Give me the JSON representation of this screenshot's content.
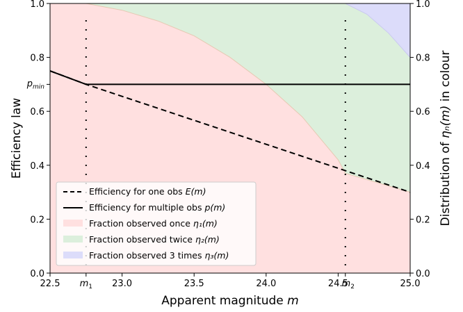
{
  "chart_data": {
    "type": "area",
    "xlabel": "Apparent magnitude m",
    "ylabel": "Efficiency law",
    "ylabel_right": "Distribution of η_n(m) in colour",
    "xlim": [
      22.5,
      25.0
    ],
    "ylim": [
      0.0,
      1.0
    ],
    "ylim_right": [
      0.0,
      1.0
    ],
    "x_ticks": [
      22.5,
      23.0,
      23.5,
      24.0,
      24.5,
      25.0
    ],
    "x_tick_labels": [
      "22.5",
      "23.0",
      "23.5",
      "24.0",
      "24.5",
      "25.0"
    ],
    "y_ticks": [
      0.0,
      0.2,
      0.4,
      0.6,
      0.8,
      1.0
    ],
    "y_tick_labels": [
      "0.0",
      "0.2",
      "0.4",
      "0.6",
      "0.8",
      "1.0"
    ],
    "y_right_ticks": [
      0.0,
      0.2,
      0.4,
      0.6,
      0.8,
      1.0
    ],
    "y_right_tick_labels": [
      "0.0",
      "0.2",
      "0.4",
      "0.6",
      "0.8",
      "1.0"
    ],
    "annotations": {
      "m1": {
        "x": 22.75,
        "label": "m₁"
      },
      "m2": {
        "x": 24.55,
        "label": "m₂"
      },
      "pmin": {
        "y": 0.7,
        "label": "p_min"
      }
    },
    "legend_placement": "lower-left",
    "grid": false,
    "series": [
      {
        "name": "Efficiency for one obs E(m)",
        "kind": "dashed-line",
        "color": "#000000",
        "x": [
          22.5,
          22.75,
          25.0
        ],
        "y": [
          0.75,
          0.7,
          0.3
        ]
      },
      {
        "name": "Efficiency for multiple obs p(m)",
        "kind": "solid-line",
        "color": "#000000",
        "x": [
          22.5,
          22.75,
          23.0,
          23.5,
          24.0,
          24.5,
          25.0
        ],
        "y": [
          0.75,
          0.7,
          0.7,
          0.7,
          0.7,
          0.7,
          0.7
        ]
      },
      {
        "name": "Fraction observed once η₁(m)",
        "kind": "fill",
        "color": "#ffe0e0",
        "x": [
          22.5,
          25.0
        ],
        "y_lower": [
          0.0,
          0.0
        ],
        "y_upper": [
          1.0,
          1.0
        ]
      },
      {
        "name": "Fraction observed twice η₂(m)",
        "kind": "fill-boundary",
        "color": "#dcefdc",
        "boundary_x": [
          22.75,
          23.0,
          23.25,
          23.5,
          23.75,
          24.0,
          24.25,
          24.5,
          24.55
        ],
        "boundary_y": [
          1.0,
          0.975,
          0.935,
          0.88,
          0.8,
          0.7,
          0.58,
          0.42,
          0.37
        ]
      },
      {
        "name": "Fraction observed 3 times η₃(m)",
        "kind": "fill-boundary",
        "color": "#dcdcfa",
        "boundary_x": [
          24.55,
          24.7,
          24.85,
          25.0
        ],
        "boundary_y": [
          1.0,
          0.96,
          0.89,
          0.8
        ]
      }
    ]
  },
  "legend": {
    "entries": [
      {
        "text": "Efficiency for one obs ",
        "math": "E(m)"
      },
      {
        "text": "Efficiency for multiple obs ",
        "math": "p(m)"
      },
      {
        "text": "Fraction observed once ",
        "math": "η₁(m)"
      },
      {
        "text": "Fraction observed twice ",
        "math": "η₂(m)"
      },
      {
        "text": "Fraction observed 3 times ",
        "math": "η₃(m)"
      }
    ]
  },
  "labels": {
    "x_axis": "Apparent magnitude ",
    "x_axis_math": "m",
    "y_axis": "Efficiency law",
    "y_axis_right_pre": "Distribution of ",
    "y_axis_right_math": "ηₙ(m)",
    "y_axis_right_post": " in colour",
    "pmin": "p",
    "pmin_sub": "min",
    "m1": "m",
    "m1_sub": "1",
    "m2": "m",
    "m2_sub": "2"
  }
}
